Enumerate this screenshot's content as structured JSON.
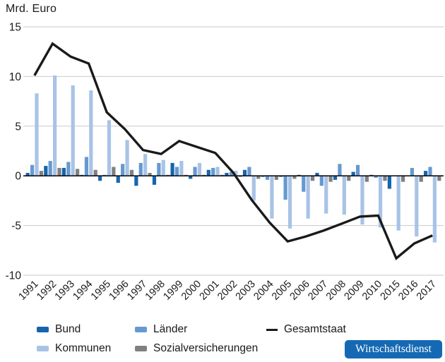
{
  "header": {
    "unit_label": "Mrd. Euro"
  },
  "legend": {
    "bund": "Bund",
    "laender": "Länder",
    "kommunen": "Kommunen",
    "sozialversicherungen": "Sozialversicherungen",
    "gesamtstaat": "Gesamtstaat"
  },
  "branding": {
    "badge": "Wirtschaftsdienst",
    "badge_bg": "#1569b4",
    "badge_text_color": "#ffffff"
  },
  "colors": {
    "bund": "#1565ae",
    "laender": "#6699d1",
    "kommunen": "#a8c3e6",
    "sozialversicherungen": "#808080",
    "gesamtstaat_line": "#1a1a1a",
    "gridline": "#c9c9c9",
    "zero_axis": "#111111"
  },
  "chart_data": {
    "type": "grouped-bar+line",
    "title": "",
    "ylabel": "Mrd. Euro",
    "xlabel": "",
    "ylim": [
      -10,
      15
    ],
    "yticks": [
      15,
      10,
      5,
      0,
      -5,
      -10
    ],
    "grid": true,
    "legend_position": "bottom",
    "categories": [
      "1991",
      "1992",
      "1993",
      "1994",
      "1995",
      "1996",
      "1997",
      "1998",
      "1999",
      "2000",
      "2001",
      "2002",
      "2003",
      "2004",
      "2005",
      "2006",
      "2007",
      "2008",
      "2009",
      "2010",
      "2015",
      "2016",
      "2017"
    ],
    "series": [
      {
        "name": "Bund",
        "color": "#1565ae",
        "values": [
          0.3,
          1.0,
          0.8,
          0.1,
          -0.5,
          -0.7,
          -1.0,
          -0.9,
          1.3,
          -0.3,
          0.6,
          0.3,
          0.6,
          -0.1,
          -0.1,
          0.1,
          0.3,
          -0.4,
          0.4,
          0.1,
          -1.3,
          0.0,
          0.5
        ]
      },
      {
        "name": "Länder",
        "color": "#6699d1",
        "values": [
          1.1,
          1.5,
          1.4,
          1.9,
          0.1,
          1.2,
          1.3,
          1.3,
          0.9,
          0.9,
          0.8,
          0.4,
          0.9,
          -0.4,
          -2.4,
          -1.6,
          -1.0,
          1.2,
          1.1,
          -0.2,
          0.0,
          0.8,
          0.9
        ]
      },
      {
        "name": "Kommunen",
        "color": "#a8c3e6",
        "values": [
          8.3,
          10.1,
          9.1,
          8.6,
          5.6,
          3.6,
          2.2,
          1.6,
          1.5,
          1.3,
          0.9,
          0.5,
          -2.5,
          -4.3,
          -5.3,
          -4.3,
          -3.8,
          -3.9,
          -4.9,
          -5.2,
          -5.5,
          -6.1,
          -6.7
        ]
      },
      {
        "name": "Sozialversicherungen",
        "color": "#808080",
        "values": [
          0.5,
          0.8,
          0.7,
          0.6,
          0.9,
          0.6,
          0.3,
          0.1,
          0.1,
          0.1,
          0.1,
          -0.1,
          -0.3,
          -0.4,
          -0.3,
          -0.5,
          -0.6,
          -0.5,
          -0.6,
          -0.5,
          -0.6,
          -0.6,
          -0.5
        ]
      }
    ],
    "line_series": {
      "name": "Gesamtstaat",
      "color": "#1a1a1a",
      "values": [
        10.1,
        13.3,
        12.0,
        11.3,
        6.4,
        4.7,
        2.6,
        2.2,
        3.5,
        2.9,
        2.3,
        0.3,
        -2.4,
        -4.7,
        -6.6,
        -6.1,
        -5.5,
        -4.8,
        -4.1,
        -4.0,
        -8.3,
        -6.8,
        -6.0
      ]
    }
  }
}
